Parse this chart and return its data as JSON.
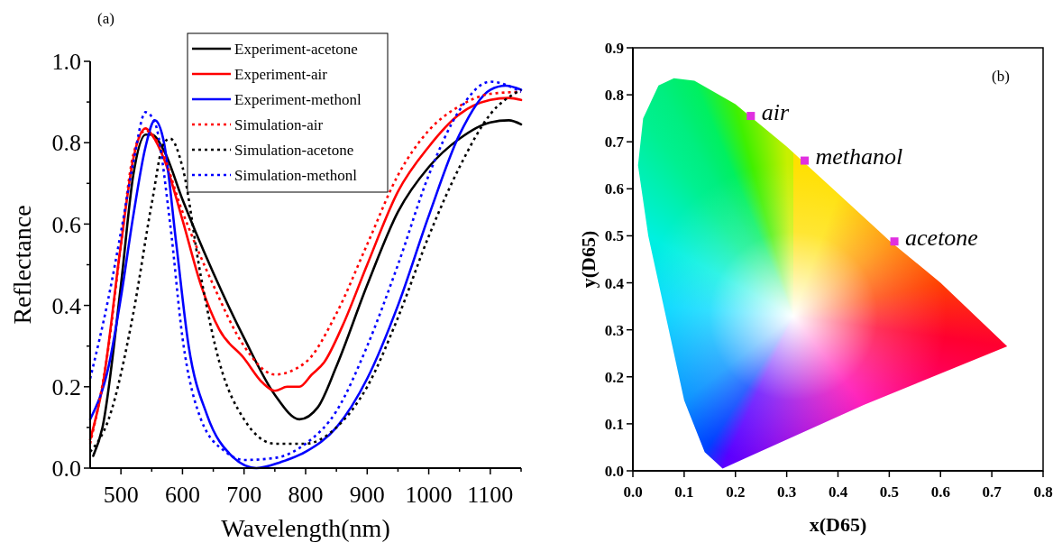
{
  "chart_data": [
    {
      "type": "line",
      "xlabel": "Wavelength(nm)",
      "ylabel": "Reflectance",
      "annotations": [
        "(a)"
      ],
      "legend": "top",
      "line_style": "solid",
      "xlim": [
        450,
        1150
      ],
      "ylim": [
        0,
        1
      ],
      "xticks": [
        {
          "value": 500,
          "label": "500"
        },
        {
          "value": 550,
          "label": null
        },
        {
          "value": 600,
          "label": "600"
        },
        {
          "value": 650,
          "label": null
        },
        {
          "value": 700,
          "label": "700"
        },
        {
          "value": 750,
          "label": null
        },
        {
          "value": 800,
          "label": "800"
        },
        {
          "value": 850,
          "label": null
        },
        {
          "value": 900,
          "label": "900"
        },
        {
          "value": 950,
          "label": null
        },
        {
          "value": 1000,
          "label": "1000"
        },
        {
          "value": 1050,
          "label": null
        },
        {
          "value": 1100,
          "label": "1100"
        },
        {
          "value": 1150,
          "label": null
        }
      ],
      "yticks": [
        {
          "value": 0,
          "label": "0.0"
        },
        {
          "value": 0.1,
          "label": null
        },
        0.2,
        {
          "value": 0.3,
          "label": null
        },
        0.4,
        {
          "value": 0.5,
          "label": null
        },
        0.6,
        {
          "value": 0.7,
          "label": null
        },
        0.8,
        {
          "value": 0.9,
          "label": null
        },
        {
          "value": 1,
          "label": "1.0"
        }
      ],
      "series": [
        {
          "name": "Experiment-acetone",
          "color": "#000000",
          "x": [
            455,
            470,
            500,
            520,
            540,
            550,
            570,
            600,
            650,
            700,
            750,
            790,
            820,
            850,
            900,
            950,
            1000,
            1050,
            1100,
            1130,
            1150
          ],
          "values": [
            0.03,
            0.1,
            0.45,
            0.72,
            0.82,
            0.82,
            0.78,
            0.66,
            0.48,
            0.32,
            0.18,
            0.12,
            0.15,
            0.25,
            0.45,
            0.63,
            0.74,
            0.81,
            0.85,
            0.855,
            0.845
          ]
        },
        {
          "name": "Experiment-air",
          "color": "#ff0000",
          "x": [
            450,
            470,
            500,
            520,
            540,
            550,
            570,
            600,
            630,
            660,
            700,
            730,
            750,
            770,
            790,
            810,
            830,
            860,
            900,
            950,
            1000,
            1050,
            1100,
            1130,
            1150
          ],
          "values": [
            0.07,
            0.2,
            0.55,
            0.76,
            0.835,
            0.82,
            0.76,
            0.61,
            0.45,
            0.34,
            0.27,
            0.21,
            0.19,
            0.2,
            0.2,
            0.23,
            0.26,
            0.35,
            0.5,
            0.68,
            0.79,
            0.87,
            0.905,
            0.91,
            0.905
          ]
        },
        {
          "name": "Experiment-methonl",
          "color": "#0000ff",
          "x": [
            450,
            480,
            500,
            520,
            540,
            555,
            570,
            590,
            610,
            640,
            680,
            720,
            760,
            800,
            850,
            900,
            950,
            1000,
            1050,
            1100,
            1125,
            1150
          ],
          "values": [
            0.12,
            0.25,
            0.42,
            0.62,
            0.79,
            0.855,
            0.8,
            0.55,
            0.3,
            0.13,
            0.03,
            0.0,
            0.015,
            0.04,
            0.1,
            0.22,
            0.4,
            0.62,
            0.82,
            0.93,
            0.94,
            0.93
          ]
        },
        {
          "name": "Simulation-air",
          "color": "#ff0000",
          "line_style": "dotted",
          "x": [
            450,
            480,
            500,
            520,
            540,
            560,
            600,
            650,
            700,
            750,
            800,
            850,
            900,
            950,
            1000,
            1050,
            1100,
            1150
          ],
          "values": [
            0.06,
            0.3,
            0.55,
            0.77,
            0.83,
            0.8,
            0.63,
            0.45,
            0.3,
            0.23,
            0.26,
            0.38,
            0.55,
            0.72,
            0.83,
            0.89,
            0.92,
            0.925
          ]
        },
        {
          "name": "Simulation-acetone",
          "color": "#000000",
          "line_style": "dotted",
          "x": [
            450,
            480,
            520,
            550,
            570,
            580,
            600,
            630,
            660,
            700,
            750,
            800,
            850,
            900,
            950,
            1000,
            1050,
            1100,
            1150
          ],
          "values": [
            0.04,
            0.12,
            0.38,
            0.65,
            0.8,
            0.81,
            0.74,
            0.47,
            0.26,
            0.12,
            0.06,
            0.06,
            0.1,
            0.2,
            0.37,
            0.57,
            0.74,
            0.87,
            0.93
          ]
        },
        {
          "name": "Simulation-methonl",
          "color": "#0000ff",
          "line_style": "dotted",
          "x": [
            450,
            480,
            500,
            520,
            540,
            555,
            580,
            600,
            630,
            670,
            700,
            750,
            800,
            850,
            900,
            950,
            1000,
            1050,
            1100,
            1150
          ],
          "values": [
            0.22,
            0.42,
            0.58,
            0.75,
            0.875,
            0.85,
            0.6,
            0.32,
            0.12,
            0.04,
            0.02,
            0.025,
            0.06,
            0.14,
            0.3,
            0.5,
            0.72,
            0.88,
            0.95,
            0.925
          ]
        }
      ]
    },
    {
      "type": "scatter",
      "xlabel": "x(D65)",
      "ylabel": "y(D65)",
      "marker": "square",
      "xlim": [
        0,
        0.8
      ],
      "ylim": [
        0,
        0.9
      ],
      "xticks": [
        {
          "value": 0,
          "label": "0.0"
        },
        0.1,
        0.2,
        0.3,
        0.4,
        0.5,
        0.6,
        0.7,
        0.8
      ],
      "yticks": [
        {
          "value": 0,
          "label": "0.0"
        },
        0.1,
        0.2,
        0.3,
        0.4,
        0.5,
        0.6,
        0.7,
        0.8,
        0.9
      ],
      "annotations": [
        "(b)",
        {
          "text": "air",
          "x": 0.23,
          "y": 0.755
        },
        {
          "text": "methanol",
          "x": 0.335,
          "y": 0.66
        },
        {
          "text": "acetone",
          "x": 0.51,
          "y": 0.488
        }
      ],
      "series": [
        {
          "color": "#e030e0",
          "x": [
            0.23,
            0.335,
            0.51
          ],
          "values": [
            0.755,
            0.66,
            0.488
          ]
        }
      ]
    }
  ]
}
